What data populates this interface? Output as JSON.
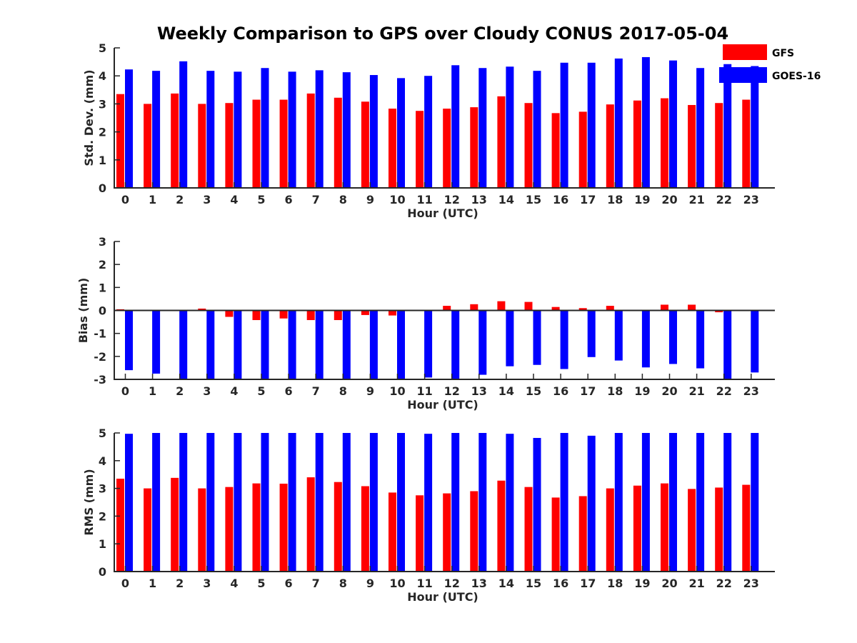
{
  "title": "Weekly Comparison to GPS over Cloudy CONUS 2017-05-04",
  "legend": {
    "position": "top-right",
    "items": [
      {
        "label": "GFS",
        "color": "#ff0000"
      },
      {
        "label": "GOES-16",
        "color": "#0000ff"
      }
    ]
  },
  "chart_data": [
    {
      "type": "bar",
      "ylabel": "Std. Dev. (mm)",
      "xlabel": "Hour (UTC)",
      "ylim": [
        0,
        5
      ],
      "yticks": [
        0,
        1,
        2,
        3,
        4,
        5
      ],
      "categories": [
        "0",
        "1",
        "2",
        "3",
        "4",
        "5",
        "6",
        "7",
        "8",
        "9",
        "10",
        "11",
        "12",
        "13",
        "14",
        "15",
        "16",
        "17",
        "18",
        "19",
        "20",
        "21",
        "22",
        "23"
      ],
      "series": [
        {
          "name": "GFS",
          "color": "#ff0000",
          "values": [
            3.35,
            3.0,
            3.37,
            3.0,
            3.03,
            3.15,
            3.15,
            3.37,
            3.22,
            3.08,
            2.83,
            2.75,
            2.83,
            2.88,
            3.27,
            3.03,
            2.67,
            2.72,
            2.98,
            3.12,
            3.2,
            2.96,
            3.03,
            3.15
          ]
        },
        {
          "name": "GOES-16",
          "color": "#0000ff",
          "values": [
            4.23,
            4.18,
            4.52,
            4.18,
            4.15,
            4.28,
            4.15,
            4.2,
            4.13,
            4.03,
            3.92,
            4.0,
            4.38,
            4.28,
            4.33,
            4.18,
            4.47,
            4.47,
            4.62,
            4.67,
            4.55,
            4.28,
            4.42,
            4.35
          ]
        }
      ]
    },
    {
      "type": "bar",
      "ylabel": "Bias (mm)",
      "xlabel": "Hour (UTC)",
      "ylim": [
        -3,
        3
      ],
      "yticks": [
        -3,
        -2,
        -1,
        0,
        1,
        2,
        3
      ],
      "categories": [
        "0",
        "1",
        "2",
        "3",
        "4",
        "5",
        "6",
        "7",
        "8",
        "9",
        "10",
        "11",
        "12",
        "13",
        "14",
        "15",
        "16",
        "17",
        "18",
        "19",
        "20",
        "21",
        "22",
        "23"
      ],
      "series": [
        {
          "name": "GFS",
          "color": "#ff0000",
          "values": [
            0.05,
            0.0,
            0.0,
            0.08,
            -0.28,
            -0.42,
            -0.35,
            -0.42,
            -0.42,
            -0.2,
            -0.22,
            0.0,
            0.2,
            0.27,
            0.4,
            0.37,
            0.15,
            0.1,
            0.2,
            0.02,
            0.25,
            0.25,
            -0.08,
            -0.03
          ]
        },
        {
          "name": "GOES-16",
          "color": "#0000ff",
          "values": [
            -2.6,
            -2.75,
            -3.0,
            -2.97,
            -3.0,
            -3.0,
            -2.97,
            -3.0,
            -3.0,
            -3.0,
            -3.0,
            -2.92,
            -3.0,
            -2.8,
            -2.43,
            -2.37,
            -2.55,
            -2.03,
            -2.18,
            -2.48,
            -2.33,
            -2.52,
            -3.0,
            -2.7
          ]
        }
      ]
    },
    {
      "type": "bar",
      "ylabel": "RMS (mm)",
      "xlabel": "Hour (UTC)",
      "ylim": [
        0,
        5
      ],
      "yticks": [
        0,
        1,
        2,
        3,
        4,
        5
      ],
      "categories": [
        "0",
        "1",
        "2",
        "3",
        "4",
        "5",
        "6",
        "7",
        "8",
        "9",
        "10",
        "11",
        "12",
        "13",
        "14",
        "15",
        "16",
        "17",
        "18",
        "19",
        "20",
        "21",
        "22",
        "23"
      ],
      "series": [
        {
          "name": "GFS",
          "color": "#ff0000",
          "values": [
            3.35,
            3.0,
            3.38,
            3.0,
            3.05,
            3.18,
            3.17,
            3.4,
            3.23,
            3.08,
            2.85,
            2.75,
            2.82,
            2.9,
            3.28,
            3.05,
            2.67,
            2.72,
            3.0,
            3.1,
            3.18,
            2.98,
            3.03,
            3.13
          ]
        },
        {
          "name": "GOES-16",
          "color": "#0000ff",
          "values": [
            4.97,
            5.0,
            5.0,
            5.0,
            5.0,
            5.0,
            5.0,
            5.0,
            5.0,
            5.0,
            5.0,
            4.97,
            5.0,
            5.0,
            4.97,
            4.82,
            5.0,
            4.9,
            5.0,
            5.0,
            5.0,
            5.0,
            5.0,
            5.0
          ]
        }
      ]
    }
  ]
}
